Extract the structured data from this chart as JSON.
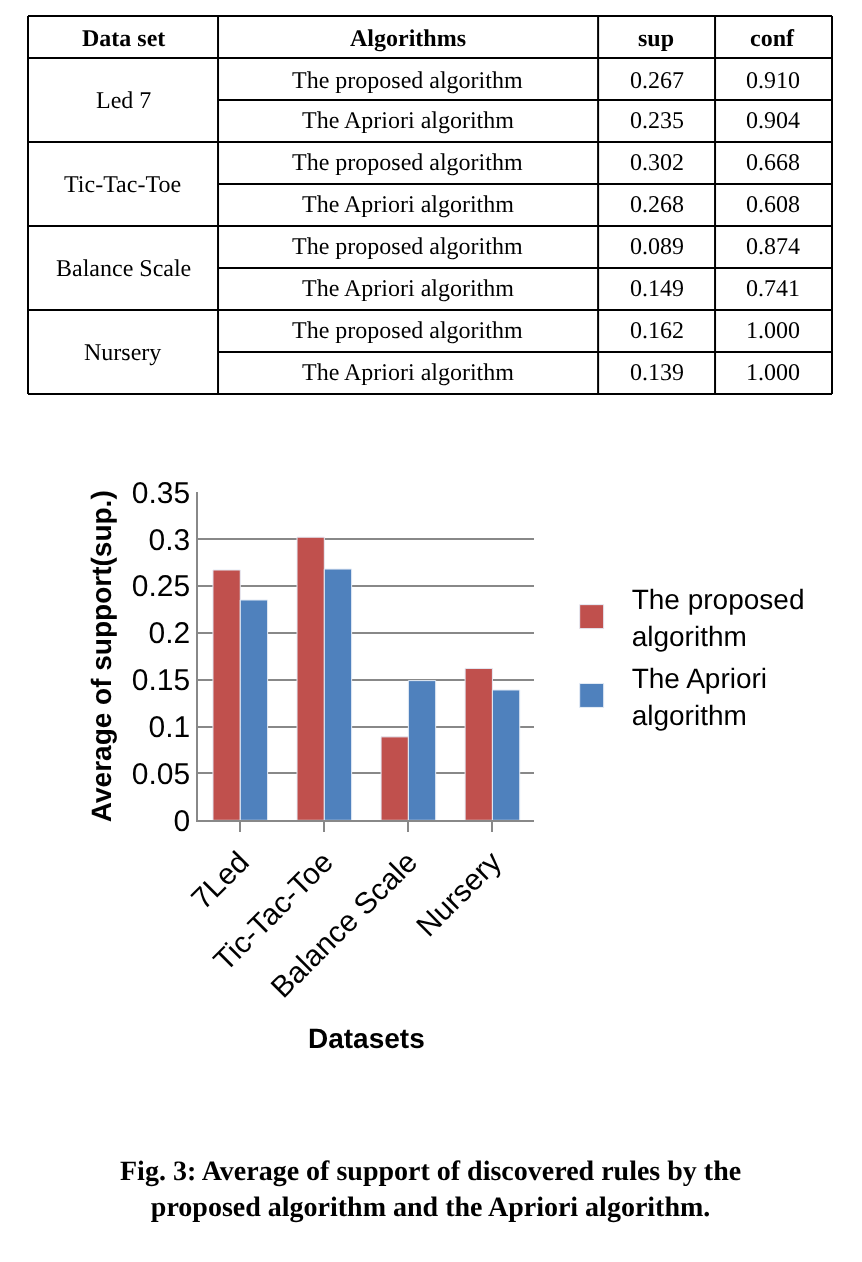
{
  "chart_data": [
    {
      "type": "other",
      "categories": [
        "Data set",
        "Algorithms",
        "sup",
        "conf"
      ],
      "cell_labels": [
        [
          "Led 7",
          "The proposed algorithm",
          "0.267",
          "0.910"
        ],
        [
          null,
          "The Apriori algorithm",
          "0.235",
          "0.904"
        ],
        [
          "Tic-Tac-Toe",
          "The proposed algorithm",
          "0.302",
          "0.668"
        ],
        [
          null,
          "The Apriori algorithm",
          "0.268",
          "0.608"
        ],
        [
          "Balance Scale",
          "The proposed algorithm",
          "0.089",
          "0.874"
        ],
        [
          null,
          "The Apriori algorithm",
          "0.149",
          "0.741"
        ],
        [
          "Nursery",
          "The proposed algorithm",
          "0.162",
          "1.000"
        ],
        [
          null,
          "The Apriori algorithm",
          "0.139",
          "1.000"
        ]
      ]
    },
    {
      "type": "bar",
      "categories": [
        "7Led",
        "Tic-Tac-Toe",
        "Balance Scale",
        "Nursery"
      ],
      "series": [
        {
          "name": "The proposed algorithm",
          "color": "#c0504d",
          "values": [
            0.267,
            0.302,
            0.089,
            0.162
          ]
        },
        {
          "name": "The Apriori algorithm",
          "color": "#4f81bd",
          "values": [
            0.235,
            0.268,
            0.149,
            0.139
          ]
        }
      ],
      "xlabel": "Datasets",
      "ylabel": "Average of support(sup.)",
      "ylim": [
        0,
        0.35
      ],
      "yticks": [
        0,
        0.05,
        0.1,
        0.15,
        0.2,
        0.25,
        0.3,
        0.35
      ],
      "grid": "y",
      "legend": "right",
      "annotations": [
        "Fig. 3: Average of support of discovered rules by the proposed algorithm and the Apriori algorithm."
      ]
    }
  ]
}
